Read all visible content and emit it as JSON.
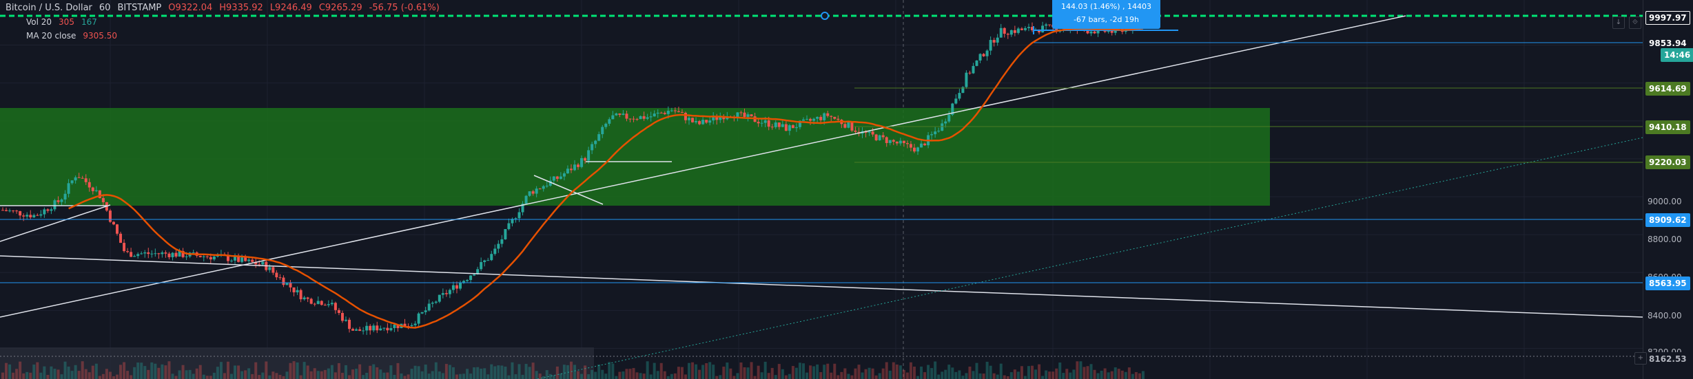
{
  "symbol": {
    "name": "Bitcoin / U.S. Dollar",
    "interval": "60",
    "exchange": "BITSTAMP"
  },
  "ohlc": {
    "open": "O9322.04",
    "high": "H9335.92",
    "low": "L9246.49",
    "close": "C9265.29",
    "change": "-56.75 (-0.61%)"
  },
  "indicators": [
    {
      "name": "Vol 20",
      "values": [
        "305",
        "167"
      ]
    },
    {
      "name": "MA 20 close",
      "values": [
        "9305.50"
      ]
    }
  ],
  "measure": {
    "line1": "144.03 (1.46%) , 14403",
    "line2": "-67 bars, -2d 19h"
  },
  "price_axis": {
    "ticks": [
      "9000.00",
      "8800.00",
      "8600.00",
      "8400.00",
      "8200.00"
    ],
    "labels": [
      {
        "text": "9997.97",
        "bg": "#131722",
        "fg": "#ffffff",
        "border": "#ffffff"
      },
      {
        "text": "9853.94",
        "bg": "#131722",
        "fg": "#ffffff",
        "border": "#131722"
      },
      {
        "text": "14:46",
        "bg": "#26a69a",
        "fg": "#ffffff",
        "border": "#26a69a"
      },
      {
        "text": "9614.69",
        "bg": "#4c7a23",
        "fg": "#ffffff",
        "border": "#4c7a23"
      },
      {
        "text": "9410.18",
        "bg": "#4c7a23",
        "fg": "#ffffff",
        "border": "#4c7a23"
      },
      {
        "text": "9220.03",
        "bg": "#4c7a23",
        "fg": "#ffffff",
        "border": "#4c7a23"
      },
      {
        "text": "8909.62",
        "bg": "#2196f3",
        "fg": "#ffffff",
        "border": "#2196f3"
      },
      {
        "text": "8563.95",
        "bg": "#2196f3",
        "fg": "#ffffff",
        "border": "#2196f3"
      },
      {
        "text": "8162.53",
        "bg": "#131722",
        "fg": "#b2b5be",
        "border": "#131722"
      }
    ]
  },
  "colors": {
    "up": "#26a69a",
    "down": "#ef5350",
    "ma": "#e65100",
    "zone": "#1b6e1b",
    "blueline": "#2196f3",
    "green_dash": "#00e676"
  },
  "buttons": [
    "↓",
    "⟐",
    "+"
  ]
}
